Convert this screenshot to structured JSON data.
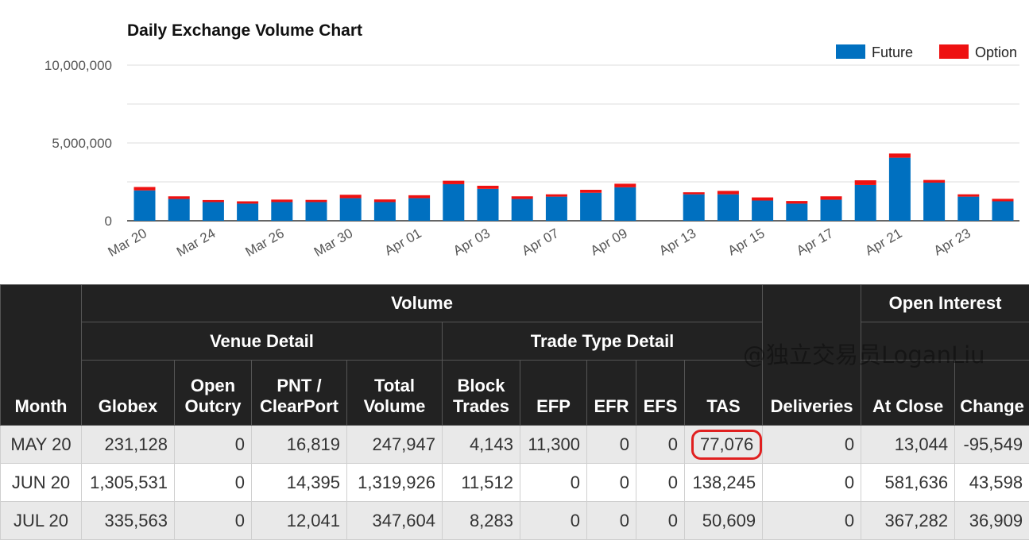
{
  "colors": {
    "future": "#0070c0",
    "option": "#ee1111",
    "header_bg": "#222222",
    "highlight": "#e02020"
  },
  "chart_data": {
    "type": "bar",
    "stacked": true,
    "title": "Daily Exchange Volume Chart",
    "ylim": [
      0,
      10000000
    ],
    "yticks": [
      0,
      5000000,
      10000000
    ],
    "ytick_labels": [
      "0",
      "5,000,000",
      "10,000,000"
    ],
    "categories": [
      "Mar 20",
      "Mar 23",
      "Mar 24",
      "Mar 25",
      "Mar 26",
      "Mar 27",
      "Mar 30",
      "Mar 31",
      "Apr 01",
      "Apr 02",
      "Apr 03",
      "Apr 06",
      "Apr 07",
      "Apr 08",
      "Apr 09",
      "Apr 10",
      "Apr 13",
      "Apr 14",
      "Apr 15",
      "Apr 16",
      "Apr 17",
      "Apr 20",
      "Apr 21",
      "Apr 22",
      "Apr 23",
      "Apr 24"
    ],
    "xtick_labels": [
      "Mar 20",
      "Mar 24",
      "Mar 26",
      "Mar 30",
      "Apr 01",
      "Apr 03",
      "Apr 07",
      "Apr 09",
      "Apr 13",
      "Apr 15",
      "Apr 17",
      "Apr 21",
      "Apr 23"
    ],
    "legend": [
      "Future",
      "Option"
    ],
    "legend_position": "top-right",
    "series": [
      {
        "name": "Future",
        "values": [
          1950000,
          1400000,
          1200000,
          1100000,
          1200000,
          1200000,
          1450000,
          1200000,
          1450000,
          2350000,
          2050000,
          1400000,
          1550000,
          1800000,
          2150000,
          0,
          1700000,
          1700000,
          1300000,
          1100000,
          1350000,
          2300000,
          4050000,
          2450000,
          1550000,
          1250000
        ]
      },
      {
        "name": "Option",
        "values": [
          220000,
          170000,
          130000,
          150000,
          160000,
          140000,
          220000,
          170000,
          190000,
          220000,
          200000,
          170000,
          150000,
          190000,
          230000,
          0,
          130000,
          220000,
          200000,
          170000,
          220000,
          300000,
          270000,
          170000,
          150000,
          160000
        ]
      }
    ]
  },
  "table": {
    "group_headers": {
      "volume": "Volume",
      "open_interest": "Open Interest",
      "venue_detail": "Venue Detail",
      "trade_type_detail": "Trade Type Detail"
    },
    "columns": {
      "month": "Month",
      "globex": "Globex",
      "open_outcry": "Open Outcry",
      "pnt": "PNT / ClearPort",
      "total": "Total Volume",
      "block": "Block Trades",
      "efp": "EFP",
      "efr": "EFR",
      "efs": "EFS",
      "tas": "TAS",
      "deliveries": "Deliveries",
      "at_close": "At Close",
      "change": "Change"
    },
    "rows": [
      {
        "month": "MAY 20",
        "globex": "231,128",
        "open_outcry": "0",
        "pnt": "16,819",
        "total": "247,947",
        "block": "4,143",
        "efp": "11,300",
        "efr": "0",
        "efs": "0",
        "tas": "77,076",
        "deliveries": "0",
        "at_close": "13,044",
        "change": "-95,549"
      },
      {
        "month": "JUN 20",
        "globex": "1,305,531",
        "open_outcry": "0",
        "pnt": "14,395",
        "total": "1,319,926",
        "block": "11,512",
        "efp": "0",
        "efr": "0",
        "efs": "0",
        "tas": "138,245",
        "deliveries": "0",
        "at_close": "581,636",
        "change": "43,598"
      },
      {
        "month": "JUL 20",
        "globex": "335,563",
        "open_outcry": "0",
        "pnt": "12,041",
        "total": "347,604",
        "block": "8,283",
        "efp": "0",
        "efr": "0",
        "efs": "0",
        "tas": "50,609",
        "deliveries": "0",
        "at_close": "367,282",
        "change": "36,909"
      }
    ]
  },
  "watermark": "@独立交易员LoganLiu"
}
